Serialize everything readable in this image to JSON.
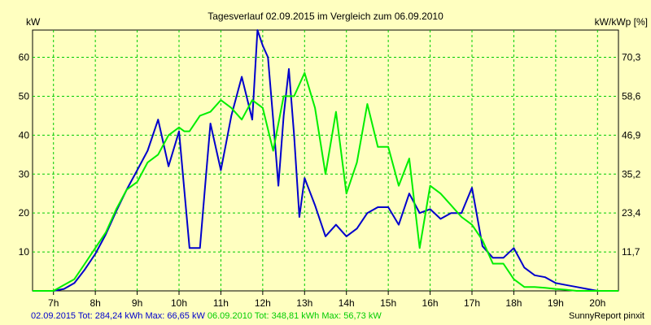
{
  "chart_data": {
    "type": "line",
    "title": "Tagesverlauf 02.09.2015 im Vergleich zum 06.09.2010",
    "ylabel_left": "kW",
    "ylabel_right": "kW/kWp [%]",
    "x_ticks": [
      "7h",
      "8h",
      "9h",
      "10h",
      "11h",
      "12h",
      "13h",
      "14h",
      "15h",
      "16h",
      "17h",
      "18h",
      "19h",
      "20h"
    ],
    "y_ticks_left": [
      "10",
      "20",
      "30",
      "40",
      "50",
      "60"
    ],
    "y_ticks_right": [
      "11,7",
      "23,4",
      "35,2",
      "46,9",
      "58,6",
      "70,3"
    ],
    "ylim_left": [
      0,
      67
    ],
    "xlim_hours": [
      6.5,
      20.5
    ],
    "grid": true,
    "series": [
      {
        "name": "02.09.2015",
        "color": "#0000cc",
        "x": [
          6.5,
          6.75,
          7.0,
          7.25,
          7.5,
          7.75,
          8.0,
          8.25,
          8.5,
          8.75,
          9.0,
          9.25,
          9.5,
          9.625,
          9.75,
          10.0,
          10.25,
          10.375,
          10.5,
          10.625,
          10.75,
          11.0,
          11.125,
          11.25,
          11.5,
          11.75,
          11.875,
          12.0,
          12.125,
          12.25,
          12.375,
          12.5,
          12.625,
          12.75,
          12.875,
          13.0,
          13.25,
          13.5,
          13.75,
          14.0,
          14.25,
          14.5,
          14.75,
          15.0,
          15.25,
          15.5,
          15.75,
          16.0,
          16.25,
          16.5,
          16.75,
          17.0,
          17.25,
          17.5,
          17.75,
          18.0,
          18.25,
          18.5,
          18.75,
          19.0,
          19.25,
          19.5,
          19.75,
          20.0,
          20.25,
          20.5
        ],
        "y": [
          0,
          0,
          0,
          0.5,
          2,
          5.5,
          9.5,
          14.5,
          20.5,
          26,
          31,
          36,
          44,
          38,
          32,
          41,
          11,
          11,
          11,
          27,
          43,
          31,
          38,
          45,
          55,
          44,
          67,
          63,
          60,
          44,
          27,
          45,
          57,
          40,
          19,
          29,
          22,
          14,
          17,
          14,
          16,
          20,
          21.5,
          21.5,
          17,
          25,
          20,
          21,
          18.5,
          20,
          20,
          26.5,
          11.5,
          8.5,
          8.5,
          11,
          6,
          4,
          3.5,
          2,
          1.5,
          1,
          0.5,
          0,
          0,
          0
        ]
      },
      {
        "name": "06.09.2010",
        "color": "#00ee00",
        "x": [
          6.5,
          6.75,
          7.0,
          7.25,
          7.5,
          7.75,
          8.0,
          8.25,
          8.5,
          8.75,
          9.0,
          9.25,
          9.5,
          9.75,
          10.0,
          10.125,
          10.25,
          10.5,
          10.75,
          11.0,
          11.25,
          11.5,
          11.75,
          12.0,
          12.25,
          12.5,
          12.75,
          13.0,
          13.25,
          13.5,
          13.75,
          14.0,
          14.25,
          14.5,
          14.75,
          15.0,
          15.25,
          15.5,
          15.75,
          16.0,
          16.25,
          16.5,
          16.75,
          17.0,
          17.25,
          17.5,
          17.75,
          18.0,
          18.25,
          18.5,
          18.75,
          19.0,
          19.25,
          19.5,
          19.75,
          20.0,
          20.25,
          20.5
        ],
        "y": [
          0,
          0,
          0,
          1.5,
          3,
          7,
          11,
          15,
          21,
          26,
          28,
          33,
          35,
          40,
          42,
          41,
          41,
          45,
          46,
          49,
          47,
          44,
          49,
          47,
          36,
          50,
          50,
          56,
          47,
          30,
          46,
          25,
          33,
          48,
          37,
          37,
          27,
          34,
          11,
          27,
          25,
          22,
          19,
          17,
          13,
          7,
          7,
          3,
          1,
          1,
          0.8,
          0.5,
          0.3,
          0,
          0,
          0,
          0,
          0
        ]
      }
    ],
    "legend_text": {
      "s1_name": "02.09.2015",
      "s1_stats": " Tot: 284,24 kWh Max: 66,65 kW ",
      "s2_name": "06.09.2010",
      "s2_stats": " Tot: 348,81 kWh Max: 56,73 kW"
    },
    "credit": "SunnyReport pinxit"
  },
  "colors": {
    "background": "#ffffc0",
    "grid": "#00cc00",
    "axis": "#000000"
  }
}
